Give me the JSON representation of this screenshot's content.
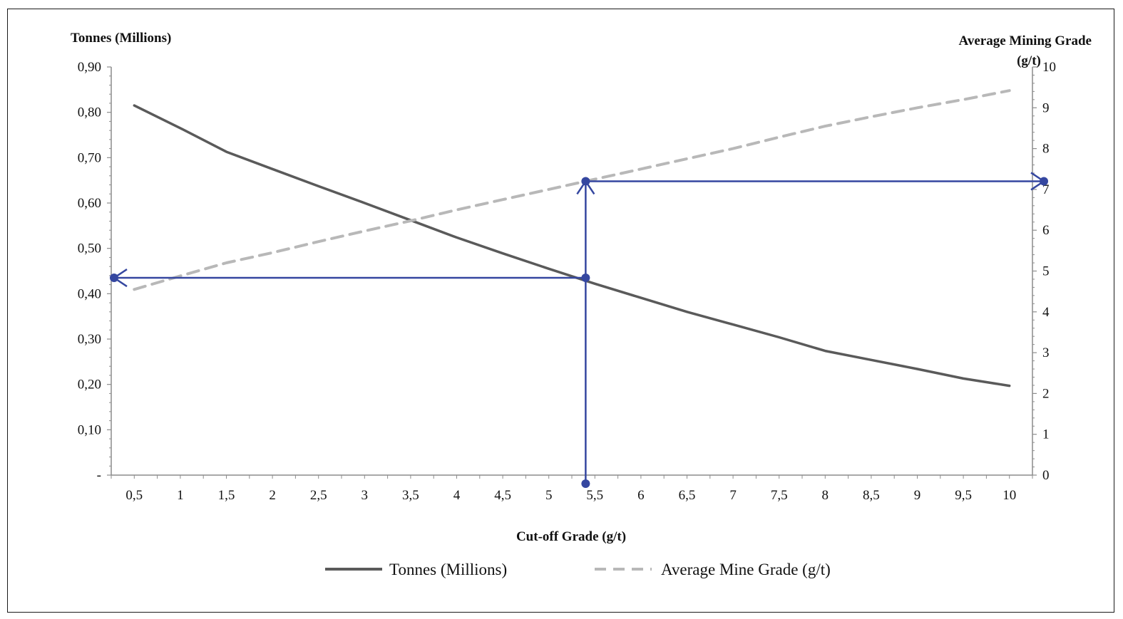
{
  "chart_data": {
    "type": "line",
    "xlabel": "Cut-off Grade (g/t)",
    "ylabel_left": "Tonnes (Millions)",
    "ylabel_right_line1": "Average Mining Grade",
    "ylabel_right_line2": "(g/t)",
    "x_tick_labels": [
      "0,5",
      "1",
      "1,5",
      "2",
      "2,5",
      "3",
      "3,5",
      "4",
      "4,5",
      "5",
      "5,5",
      "6",
      "6,5",
      "7",
      "7,5",
      "8",
      "8,5",
      "9",
      "9,5",
      "10"
    ],
    "x_tick_values": [
      0.5,
      1,
      1.5,
      2,
      2.5,
      3,
      3.5,
      4,
      4.5,
      5,
      5.5,
      6,
      6.5,
      7,
      7.5,
      8,
      8.5,
      9,
      9.5,
      10
    ],
    "xlim": [
      0.25,
      10.25
    ],
    "y_left_tick_labels": [
      "-",
      "0,10",
      "0,20",
      "0,30",
      "0,40",
      "0,50",
      "0,60",
      "0,70",
      "0,80",
      "0,90"
    ],
    "y_left_tick_values": [
      0,
      0.1,
      0.2,
      0.3,
      0.4,
      0.5,
      0.6,
      0.7,
      0.8,
      0.9
    ],
    "y_left_lim": [
      0,
      0.9
    ],
    "y_right_tick_labels": [
      "0",
      "1",
      "2",
      "3",
      "4",
      "5",
      "6",
      "7",
      "8",
      "9",
      "10"
    ],
    "y_right_tick_values": [
      0,
      1,
      2,
      3,
      4,
      5,
      6,
      7,
      8,
      9,
      10
    ],
    "y_right_lim": [
      0,
      10
    ],
    "grid": false,
    "legend_position": "bottom",
    "series": [
      {
        "name": "Tonnes (Millions)",
        "axis": "left",
        "style": "solid",
        "color": "#5a5a5a",
        "x": [
          0.5,
          1,
          1.5,
          2,
          2.5,
          3,
          3.5,
          4,
          4.5,
          5,
          5.5,
          6,
          6.5,
          7,
          7.5,
          8,
          8.5,
          9,
          9.5,
          10
        ],
        "y": [
          0.815,
          0.765,
          0.713,
          0.675,
          0.637,
          0.6,
          0.562,
          0.524,
          0.489,
          0.455,
          0.422,
          0.391,
          0.36,
          0.332,
          0.304,
          0.274,
          0.254,
          0.234,
          0.213,
          0.197
        ]
      },
      {
        "name": "Average Mine Grade (g/t)",
        "axis": "right",
        "style": "dashed",
        "color": "#b8b8b8",
        "x": [
          0.5,
          1,
          1.5,
          2,
          2.5,
          3,
          3.5,
          4,
          4.5,
          5,
          5.5,
          6,
          6.5,
          7,
          7.5,
          8,
          8.5,
          9,
          9.5,
          10
        ],
        "y": [
          4.55,
          4.88,
          5.2,
          5.45,
          5.72,
          5.98,
          6.23,
          6.5,
          6.75,
          7.0,
          7.25,
          7.5,
          7.75,
          8.0,
          8.28,
          8.55,
          8.78,
          9.0,
          9.2,
          9.42
        ]
      }
    ],
    "annotation": {
      "color": "#3547a0",
      "cutoff_x": 5.4,
      "tonnes_at_cutoff": 0.435,
      "grade_at_cutoff": 7.2
    }
  }
}
